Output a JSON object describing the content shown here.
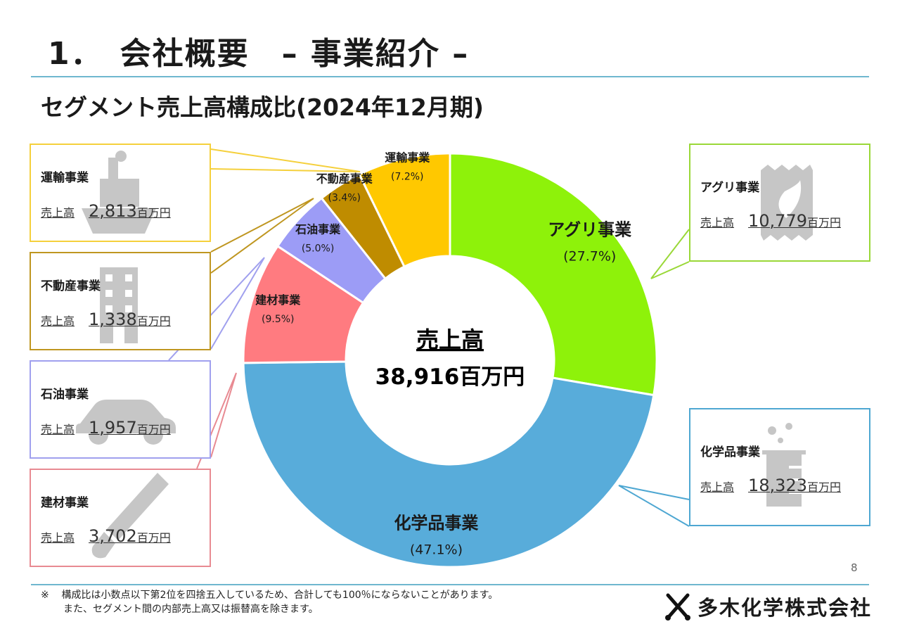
{
  "page": {
    "title": "1．　会社概要　– 事業紹介 –",
    "subtitle": "セグメント売上高構成比(2024年12月期)",
    "page_number": "8",
    "footnote_mark": "※",
    "footnote_line1": "構成比は小数点以下第2位を四捨五入しているため、合計しても100％にならないことがあります。",
    "footnote_line2": "また、セグメント間の内部売上高又は振替高を除きます。",
    "company_logo": "多木化学株式会社"
  },
  "center": {
    "label": "売上高",
    "total": "38,916百万円"
  },
  "colors": {
    "accent_rule": "#6fb7cf",
    "agri": "#8ef20a",
    "chem": "#58acda",
    "build": "#ff7b80",
    "oil": "#9c9cf6",
    "realestate": "#bf8c00",
    "transport": "#ffc800"
  },
  "chart_data": {
    "type": "pie",
    "donut": true,
    "unit": "百万円",
    "slices": [
      {
        "key": "agri",
        "name": "アグリ事業",
        "value": 10779,
        "percent_label": "(27.7%)",
        "color": "#8ef20a"
      },
      {
        "key": "chem",
        "name": "化学品事業",
        "value": 18323,
        "percent_label": "(47.1%)",
        "color": "#58acda"
      },
      {
        "key": "build",
        "name": "建材事業",
        "value": 3702,
        "percent_label": "(9.5%)",
        "color": "#ff7b80"
      },
      {
        "key": "oil",
        "name": "石油事業",
        "value": 1957,
        "percent_label": "(5.0%)",
        "color": "#9c9cf6"
      },
      {
        "key": "realestate",
        "name": "不動産事業",
        "value": 1338,
        "percent_label": "(3.4%)",
        "color": "#bf8c00"
      },
      {
        "key": "transport",
        "name": "運輸事業",
        "value": 2813,
        "percent_label": "(7.2%)",
        "color": "#ffc800"
      }
    ]
  },
  "callouts": [
    {
      "key": "transport",
      "name": "運輸事業",
      "sales_label": "売上高",
      "sales_value": "2,813",
      "sales_unit": "百万円",
      "icon": "ship-icon"
    },
    {
      "key": "realestate",
      "name": "不動産事業",
      "sales_label": "売上高",
      "sales_value": "1,338",
      "sales_unit": "百万円",
      "icon": "building-icon"
    },
    {
      "key": "oil",
      "name": "石油事業",
      "sales_label": "売上高",
      "sales_value": "1,957",
      "sales_unit": "百万円",
      "icon": "car-icon"
    },
    {
      "key": "build",
      "name": "建材事業",
      "sales_label": "売上高",
      "sales_value": "3,702",
      "sales_unit": "百万円",
      "icon": "saw-icon"
    },
    {
      "key": "agri",
      "name": "アグリ事業",
      "sales_label": "売上高",
      "sales_value": "10,779",
      "sales_unit": "百万円",
      "icon": "fertilizer-bag-icon"
    },
    {
      "key": "chem",
      "name": "化学品事業",
      "sales_label": "売上高",
      "sales_value": "18,323",
      "sales_unit": "百万円",
      "icon": "beaker-icon"
    }
  ]
}
